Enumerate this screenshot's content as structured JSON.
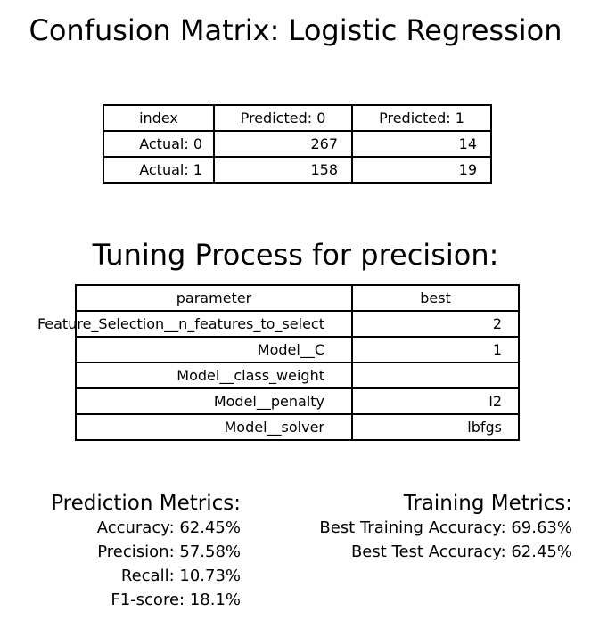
{
  "title": "Confusion Matrix: Logistic Regression",
  "confusion_matrix": {
    "headers": [
      "index",
      "Predicted: 0",
      "Predicted: 1"
    ],
    "rows": [
      {
        "label": "Actual: 0",
        "values": [
          "267",
          "14"
        ]
      },
      {
        "label": "Actual: 1",
        "values": [
          "158",
          "19"
        ]
      }
    ]
  },
  "tuning": {
    "title": "Tuning Process for precision:",
    "headers": [
      "parameter",
      "best"
    ],
    "rows": [
      {
        "parameter": "Feature_Selection__n_features_to_select",
        "best": "2"
      },
      {
        "parameter": "Model__C",
        "best": "1"
      },
      {
        "parameter": "Model__class_weight",
        "best": ""
      },
      {
        "parameter": "Model__penalty",
        "best": "l2"
      },
      {
        "parameter": "Model__solver",
        "best": "lbfgs"
      }
    ]
  },
  "prediction_metrics": {
    "heading": "Prediction Metrics:",
    "lines": [
      "Accuracy: 62.45%",
      "Precision: 57.58%",
      "Recall: 10.73%",
      "F1-score: 18.1%"
    ]
  },
  "training_metrics": {
    "heading": "Training Metrics:",
    "lines": [
      "Best Training Accuracy: 69.63%",
      "Best Test Accuracy: 62.45%"
    ]
  }
}
